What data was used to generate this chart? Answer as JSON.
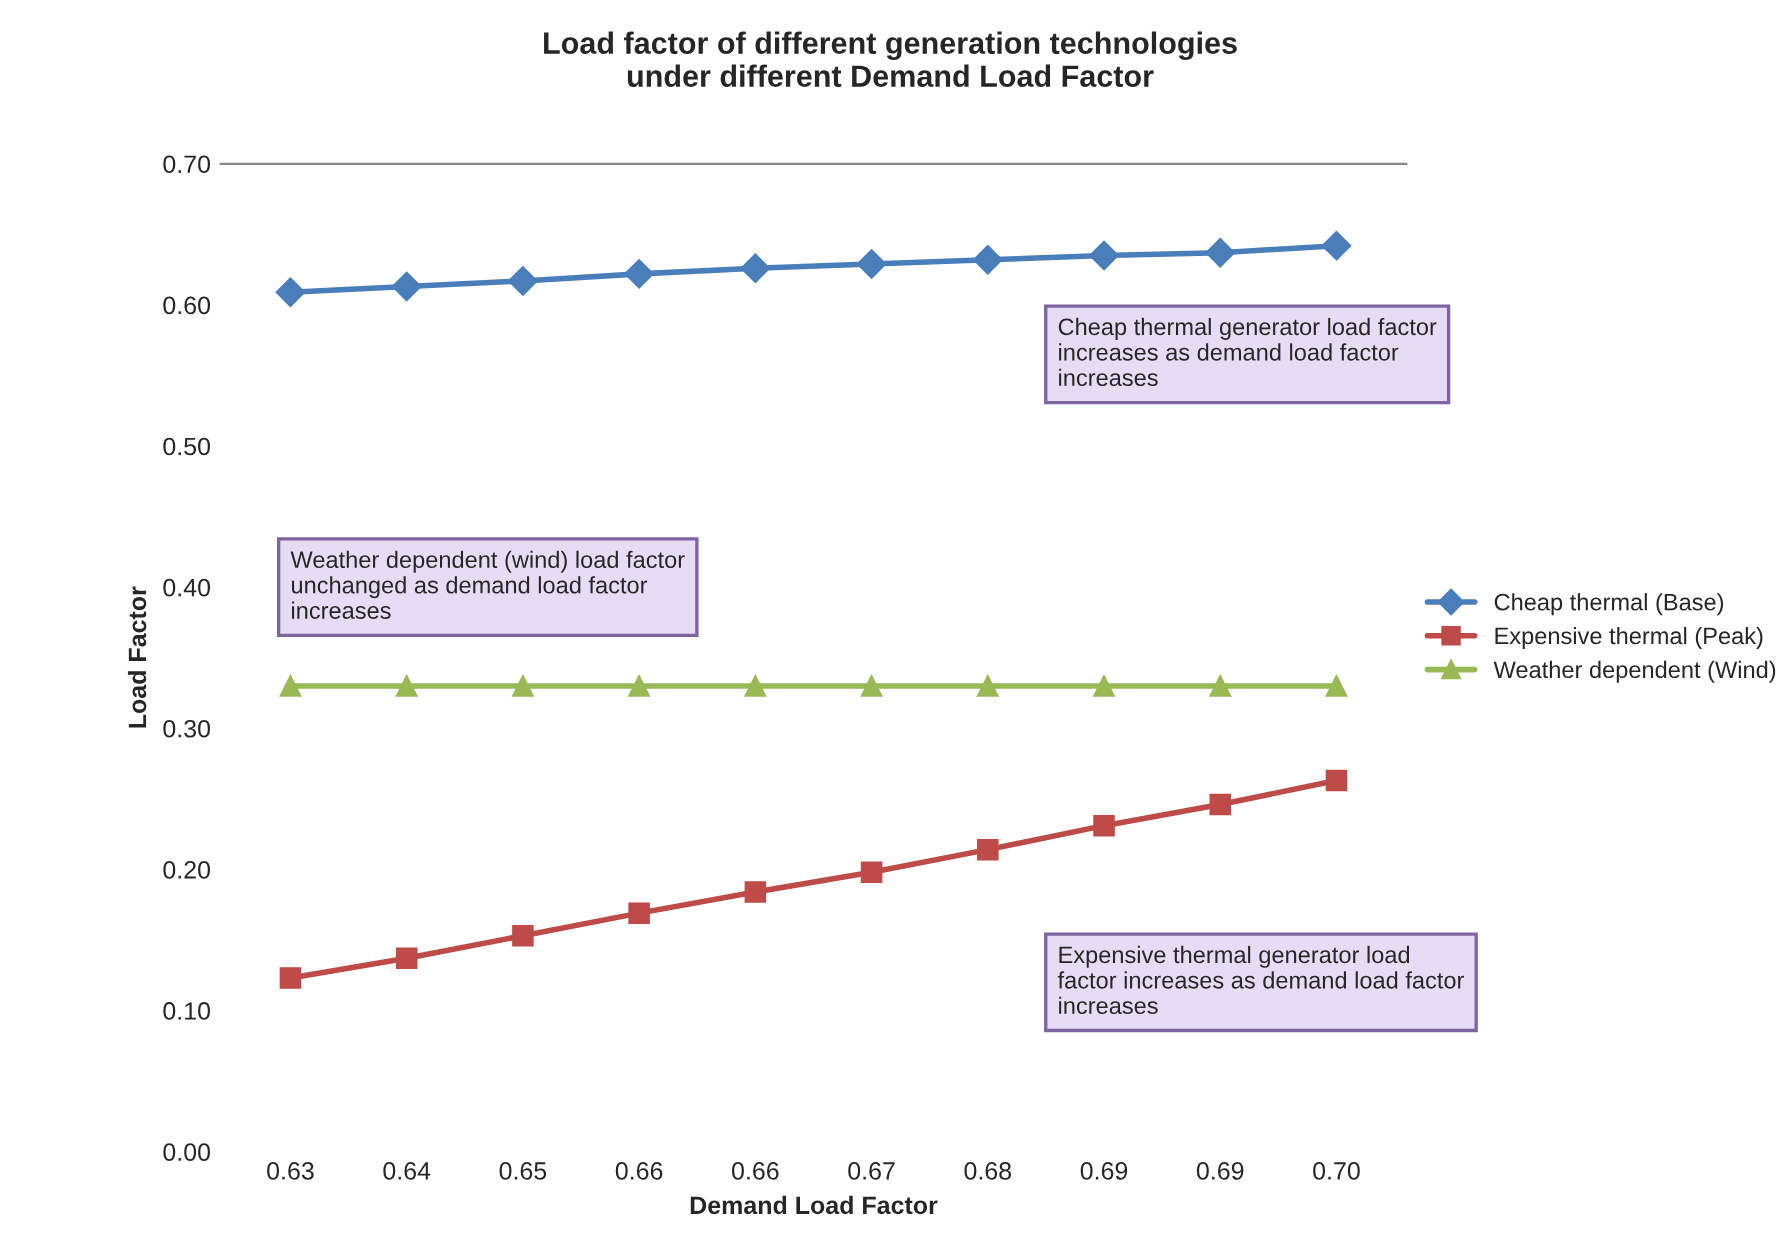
{
  "chart_data": {
    "type": "line",
    "title": "Load factor of different generation technologies\nunder different Demand Load Factor",
    "xlabel": "Demand Load Factor",
    "ylabel": "Load Factor",
    "categories": [
      "0.63",
      "0.64",
      "0.65",
      "0.66",
      "0.66",
      "0.67",
      "0.68",
      "0.69",
      "0.69",
      "0.70"
    ],
    "series": [
      {
        "name": "Cheap thermal (Base)",
        "color": "#4a7ebb",
        "marker": "diamond",
        "values": [
          0.609,
          0.613,
          0.617,
          0.622,
          0.626,
          0.629,
          0.632,
          0.635,
          0.637,
          0.642
        ]
      },
      {
        "name": "Expensive thermal (Peak)",
        "color": "#be4b48",
        "marker": "square",
        "values": [
          0.123,
          0.137,
          0.153,
          0.169,
          0.184,
          0.198,
          0.214,
          0.231,
          0.246,
          0.263
        ]
      },
      {
        "name": "Weather dependent (Wind)",
        "color": "#98b954",
        "marker": "triangle",
        "values": [
          0.33,
          0.33,
          0.33,
          0.33,
          0.33,
          0.33,
          0.33,
          0.33,
          0.33,
          0.33
        ]
      }
    ],
    "ylim": [
      0,
      0.7
    ],
    "yticks": [
      {
        "value": 0,
        "label": "0.00"
      },
      {
        "value": 0.1,
        "label": "0.10"
      },
      {
        "value": 0.2,
        "label": "0.20"
      },
      {
        "value": 0.3,
        "label": "0.30"
      },
      {
        "value": 0.4,
        "label": "0.40"
      },
      {
        "value": 0.5,
        "label": "0.50"
      },
      {
        "value": 0.6,
        "label": "0.60"
      },
      {
        "value": 0.7,
        "label": "0.70"
      }
    ],
    "legend": "right",
    "annotations": [
      "Cheap thermal generator load factor increases as demand load factor increases",
      "Weather dependent (wind) load factor unchanged as demand load factor increases",
      "Expensive thermal generator load factor increases as demand load factor increases"
    ]
  }
}
